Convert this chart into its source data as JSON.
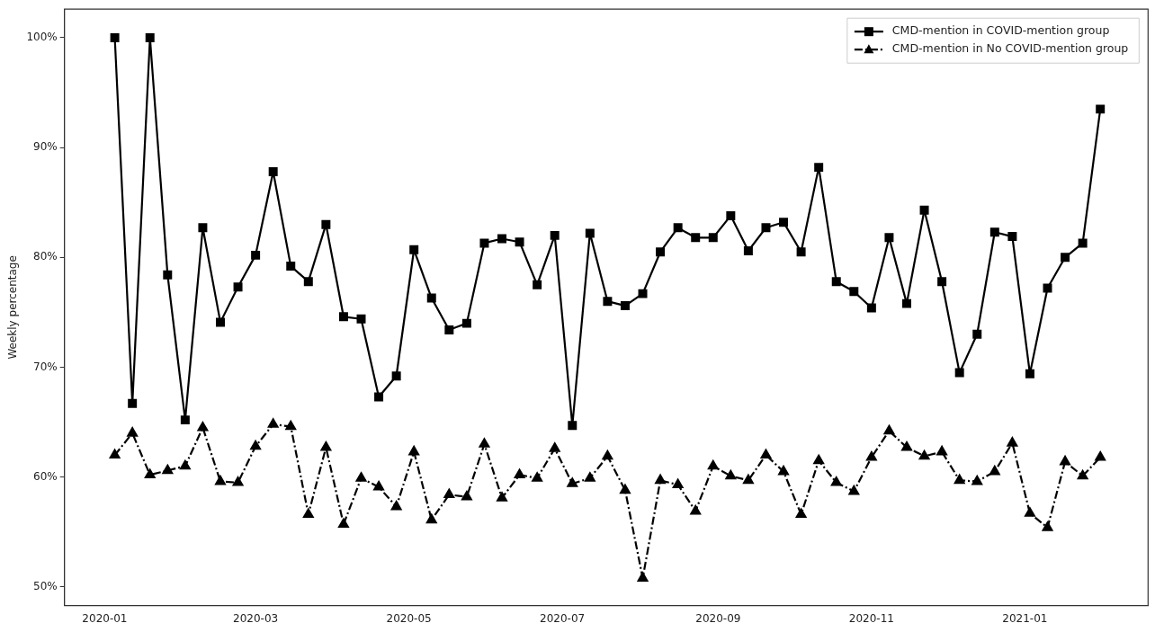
{
  "chart_data": {
    "type": "line",
    "ylabel": "Weekly percentage",
    "x": [
      "2020-01-05",
      "2020-01-12",
      "2020-01-19",
      "2020-01-26",
      "2020-02-02",
      "2020-02-09",
      "2020-02-16",
      "2020-02-23",
      "2020-03-01",
      "2020-03-08",
      "2020-03-15",
      "2020-03-22",
      "2020-03-29",
      "2020-04-05",
      "2020-04-12",
      "2020-04-19",
      "2020-04-26",
      "2020-05-03",
      "2020-05-10",
      "2020-05-17",
      "2020-05-24",
      "2020-05-31",
      "2020-06-07",
      "2020-06-14",
      "2020-06-21",
      "2020-06-28",
      "2020-07-05",
      "2020-07-12",
      "2020-07-19",
      "2020-07-26",
      "2020-08-02",
      "2020-08-09",
      "2020-08-16",
      "2020-08-23",
      "2020-08-30",
      "2020-09-06",
      "2020-09-13",
      "2020-09-20",
      "2020-09-27",
      "2020-10-04",
      "2020-10-11",
      "2020-10-18",
      "2020-10-25",
      "2020-11-01",
      "2020-11-08",
      "2020-11-15",
      "2020-11-22",
      "2020-11-29",
      "2020-12-06",
      "2020-12-13",
      "2020-12-20",
      "2020-12-27",
      "2021-01-03",
      "2021-01-10",
      "2021-01-17",
      "2021-01-24",
      "2021-01-31"
    ],
    "series": [
      {
        "name": "CMD-mention in COVID-mention group",
        "color": "#000000",
        "marker": "square",
        "line_style": "solid",
        "values": [
          100,
          66.7,
          100,
          78.4,
          65.2,
          82.7,
          74.1,
          77.3,
          80.2,
          87.8,
          79.2,
          77.8,
          83.0,
          74.6,
          74.4,
          67.3,
          69.2,
          80.7,
          76.3,
          73.4,
          74.0,
          81.3,
          81.7,
          81.4,
          77.5,
          82.0,
          64.7,
          82.2,
          76.0,
          75.6,
          76.7,
          80.5,
          82.7,
          81.8,
          81.8,
          83.8,
          80.6,
          82.7,
          83.2,
          80.5,
          88.2,
          77.8,
          76.9,
          75.4,
          81.8,
          75.8,
          84.3,
          77.8,
          69.5,
          73.0,
          82.3,
          81.9,
          69.4,
          77.2,
          80.0,
          81.3,
          93.5
        ]
      },
      {
        "name": "CMD-mention in No COVID-mention group",
        "color": "#000000",
        "marker": "triangle",
        "line_style": "dashed",
        "values": [
          62.0,
          64.0,
          60.2,
          60.6,
          61.0,
          64.5,
          59.6,
          59.5,
          62.8,
          64.8,
          64.6,
          56.6,
          62.7,
          55.7,
          59.9,
          59.1,
          57.3,
          62.3,
          56.1,
          58.4,
          58.2,
          63.0,
          58.1,
          60.2,
          59.9,
          62.6,
          59.4,
          59.9,
          61.9,
          58.8,
          50.8,
          59.7,
          59.3,
          56.9,
          61.0,
          60.1,
          59.7,
          62.0,
          60.5,
          56.6,
          61.5,
          59.5,
          58.7,
          61.8,
          64.2,
          62.7,
          61.9,
          62.3,
          59.7,
          59.6,
          60.5,
          63.1,
          56.7,
          55.4,
          61.4,
          60.1,
          61.8
        ]
      }
    ],
    "xlim": [
      "2019-12-16",
      "2021-02-19"
    ],
    "xticks": [
      "2020-01",
      "2020-03",
      "2020-05",
      "2020-07",
      "2020-09",
      "2020-11",
      "2021-01"
    ],
    "ylim": [
      48.3,
      102.6
    ],
    "yticks": [
      {
        "value": 50,
        "label": "50%"
      },
      {
        "value": 60,
        "label": "60%"
      },
      {
        "value": 70,
        "label": "70%"
      },
      {
        "value": 80,
        "label": "80%"
      },
      {
        "value": 90,
        "label": "90%"
      },
      {
        "value": 100,
        "label": "100%"
      }
    ],
    "grid": false,
    "legend": "top right"
  }
}
